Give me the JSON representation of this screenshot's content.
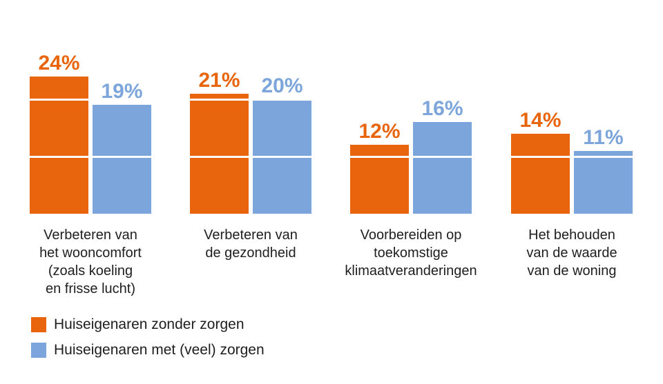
{
  "chart_data": {
    "type": "bar",
    "categories": [
      "Verbeteren van\nhet wooncomfort\n(zoals koeling\nen frisse lucht)",
      "Verbeteren van\nde gezondheid",
      "Voorbereiden op\ntoekomstige\nklimaatveranderingen",
      "Het behouden\nvan de waarde\nvan de woning"
    ],
    "series": [
      {
        "name": "Huiseigenaren zonder zorgen",
        "color": "#E8650D",
        "values": [
          24,
          21,
          12,
          14
        ],
        "value_labels": [
          "24%",
          "21%",
          "12%",
          "14%"
        ]
      },
      {
        "name": "Huiseigenaren met (veel) zorgen",
        "color": "#7CA5DB",
        "values": [
          19,
          20,
          16,
          11
        ],
        "value_labels": [
          "19%",
          "20%",
          "16%",
          "11%"
        ]
      }
    ],
    "value_suffix": "%",
    "ylim": [
      0,
      25
    ],
    "gridline_values": [
      10,
      20
    ],
    "gridline_color": "#ffffff",
    "grid": "on",
    "legend_position": "bottom-left",
    "title": "",
    "xlabel": "",
    "ylabel": "",
    "category_label_color": "#1e1e1e",
    "legend_label_color": "#1e1e1e",
    "background_color": "#ffffff"
  }
}
